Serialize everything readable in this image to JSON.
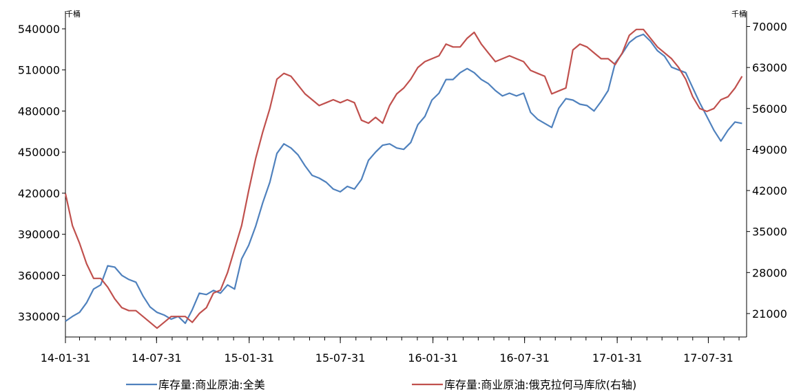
{
  "chart_data": {
    "type": "line",
    "left_unit": "千桶",
    "right_unit": "千桶",
    "x_ticks": [
      "14-01-31",
      "14-07-31",
      "15-01-31",
      "15-07-31",
      "16-01-31",
      "16-07-31",
      "17-01-31",
      "17-07-31"
    ],
    "x_range": [
      "2014-01-31",
      "2017-10-15"
    ],
    "y_left": {
      "ticks": [
        330000,
        360000,
        390000,
        420000,
        450000,
        480000,
        510000,
        540000
      ],
      "labels": [
        "330000",
        "360000",
        "390000",
        "420000",
        "450000",
        "480000",
        "510000",
        "540000"
      ],
      "range": [
        315000,
        546000
      ]
    },
    "y_right": {
      "ticks": [
        21000,
        28000,
        35000,
        42000,
        49000,
        56000,
        63000,
        70000
      ],
      "labels": [
        "21000",
        "28000",
        "35000",
        "42000",
        "49000",
        "56000",
        "63000",
        "70000"
      ],
      "range": [
        17000,
        71000
      ]
    },
    "grid": false,
    "legend_position": "bottom",
    "series": [
      {
        "name": "库存量:商业原油:全美",
        "axis": "left",
        "color": "#4f81bd",
        "points": [
          [
            "2014-01-31",
            326500
          ],
          [
            "2014-02-14",
            330000
          ],
          [
            "2014-02-28",
            333000
          ],
          [
            "2014-03-14",
            340000
          ],
          [
            "2014-03-28",
            350000
          ],
          [
            "2014-04-11",
            353000
          ],
          [
            "2014-04-25",
            367000
          ],
          [
            "2014-05-09",
            366000
          ],
          [
            "2014-05-23",
            360000
          ],
          [
            "2014-06-06",
            357000
          ],
          [
            "2014-06-20",
            355000
          ],
          [
            "2014-07-04",
            345000
          ],
          [
            "2014-07-18",
            337000
          ],
          [
            "2014-08-01",
            333000
          ],
          [
            "2014-08-15",
            331000
          ],
          [
            "2014-08-29",
            328000
          ],
          [
            "2014-09-12",
            330000
          ],
          [
            "2014-09-26",
            325000
          ],
          [
            "2014-10-10",
            335000
          ],
          [
            "2014-10-24",
            347000
          ],
          [
            "2014-11-07",
            346000
          ],
          [
            "2014-11-21",
            349000
          ],
          [
            "2014-12-05",
            347000
          ],
          [
            "2014-12-19",
            353000
          ],
          [
            "2015-01-02",
            350000
          ],
          [
            "2015-01-16",
            372000
          ],
          [
            "2015-01-30",
            382000
          ],
          [
            "2015-02-13",
            396000
          ],
          [
            "2015-02-27",
            413000
          ],
          [
            "2015-03-13",
            428000
          ],
          [
            "2015-03-27",
            449000
          ],
          [
            "2015-04-10",
            456000
          ],
          [
            "2015-04-24",
            453000
          ],
          [
            "2015-05-08",
            448000
          ],
          [
            "2015-05-22",
            440000
          ],
          [
            "2015-06-05",
            433000
          ],
          [
            "2015-06-19",
            431000
          ],
          [
            "2015-07-03",
            428000
          ],
          [
            "2015-07-17",
            423000
          ],
          [
            "2015-07-31",
            421000
          ],
          [
            "2015-08-14",
            425000
          ],
          [
            "2015-08-28",
            423000
          ],
          [
            "2015-09-11",
            430000
          ],
          [
            "2015-09-25",
            444000
          ],
          [
            "2015-10-09",
            450000
          ],
          [
            "2015-10-23",
            455000
          ],
          [
            "2015-11-06",
            456000
          ],
          [
            "2015-11-20",
            453000
          ],
          [
            "2015-12-04",
            452000
          ],
          [
            "2015-12-18",
            457000
          ],
          [
            "2016-01-01",
            470000
          ],
          [
            "2016-01-15",
            476000
          ],
          [
            "2016-01-29",
            488000
          ],
          [
            "2016-02-12",
            493000
          ],
          [
            "2016-02-26",
            503000
          ],
          [
            "2016-03-11",
            503000
          ],
          [
            "2016-03-25",
            508000
          ],
          [
            "2016-04-08",
            511000
          ],
          [
            "2016-04-22",
            508000
          ],
          [
            "2016-05-06",
            503000
          ],
          [
            "2016-05-20",
            500000
          ],
          [
            "2016-06-03",
            495000
          ],
          [
            "2016-06-17",
            491000
          ],
          [
            "2016-07-01",
            493000
          ],
          [
            "2016-07-15",
            491000
          ],
          [
            "2016-07-29",
            493000
          ],
          [
            "2016-08-12",
            479000
          ],
          [
            "2016-08-26",
            474000
          ],
          [
            "2016-09-09",
            471000
          ],
          [
            "2016-09-23",
            468000
          ],
          [
            "2016-10-07",
            482000
          ],
          [
            "2016-10-21",
            489000
          ],
          [
            "2016-11-04",
            488000
          ],
          [
            "2016-11-18",
            485000
          ],
          [
            "2016-12-02",
            484000
          ],
          [
            "2016-12-16",
            480000
          ],
          [
            "2016-12-30",
            487000
          ],
          [
            "2017-01-13",
            495000
          ],
          [
            "2017-01-27",
            515000
          ],
          [
            "2017-02-10",
            522000
          ],
          [
            "2017-02-24",
            530000
          ],
          [
            "2017-03-10",
            534000
          ],
          [
            "2017-03-24",
            536000
          ],
          [
            "2017-04-07",
            531000
          ],
          [
            "2017-04-21",
            524000
          ],
          [
            "2017-05-05",
            520000
          ],
          [
            "2017-05-19",
            512000
          ],
          [
            "2017-06-02",
            510000
          ],
          [
            "2017-06-16",
            508000
          ],
          [
            "2017-06-30",
            497000
          ],
          [
            "2017-07-14",
            486000
          ],
          [
            "2017-07-28",
            476000
          ],
          [
            "2017-08-11",
            466000
          ],
          [
            "2017-08-25",
            458000
          ],
          [
            "2017-09-08",
            466000
          ],
          [
            "2017-09-22",
            472000
          ],
          [
            "2017-10-06",
            471000
          ]
        ]
      },
      {
        "name": "库存量:商业原油:俄克拉何马库欣(右轴)",
        "axis": "right",
        "color": "#c0504d",
        "points": [
          [
            "2014-01-31",
            41500
          ],
          [
            "2014-02-14",
            36000
          ],
          [
            "2014-02-28",
            33000
          ],
          [
            "2014-03-14",
            29500
          ],
          [
            "2014-03-28",
            27000
          ],
          [
            "2014-04-11",
            27000
          ],
          [
            "2014-04-25",
            25500
          ],
          [
            "2014-05-09",
            23500
          ],
          [
            "2014-05-23",
            22000
          ],
          [
            "2014-06-06",
            21500
          ],
          [
            "2014-06-20",
            21500
          ],
          [
            "2014-07-04",
            20500
          ],
          [
            "2014-07-18",
            19500
          ],
          [
            "2014-08-01",
            18500
          ],
          [
            "2014-08-15",
            19500
          ],
          [
            "2014-08-29",
            20500
          ],
          [
            "2014-09-12",
            20500
          ],
          [
            "2014-09-26",
            20500
          ],
          [
            "2014-10-10",
            19500
          ],
          [
            "2014-10-24",
            21000
          ],
          [
            "2014-11-07",
            22000
          ],
          [
            "2014-11-21",
            24500
          ],
          [
            "2014-12-05",
            25000
          ],
          [
            "2014-12-19",
            28000
          ],
          [
            "2015-01-02",
            32000
          ],
          [
            "2015-01-16",
            36000
          ],
          [
            "2015-01-30",
            42000
          ],
          [
            "2015-02-13",
            47500
          ],
          [
            "2015-02-27",
            52000
          ],
          [
            "2015-03-13",
            56000
          ],
          [
            "2015-03-27",
            61000
          ],
          [
            "2015-04-10",
            62000
          ],
          [
            "2015-04-24",
            61500
          ],
          [
            "2015-05-08",
            60000
          ],
          [
            "2015-05-22",
            58500
          ],
          [
            "2015-06-05",
            57500
          ],
          [
            "2015-06-19",
            56500
          ],
          [
            "2015-07-03",
            57000
          ],
          [
            "2015-07-17",
            57500
          ],
          [
            "2015-07-31",
            57000
          ],
          [
            "2015-08-14",
            57500
          ],
          [
            "2015-08-28",
            57000
          ],
          [
            "2015-09-11",
            54000
          ],
          [
            "2015-09-25",
            53500
          ],
          [
            "2015-10-09",
            54500
          ],
          [
            "2015-10-23",
            53500
          ],
          [
            "2015-11-06",
            56500
          ],
          [
            "2015-11-20",
            58500
          ],
          [
            "2015-12-04",
            59500
          ],
          [
            "2015-12-18",
            61000
          ],
          [
            "2016-01-01",
            63000
          ],
          [
            "2016-01-15",
            64000
          ],
          [
            "2016-01-29",
            64500
          ],
          [
            "2016-02-12",
            65000
          ],
          [
            "2016-02-26",
            67000
          ],
          [
            "2016-03-11",
            66500
          ],
          [
            "2016-03-25",
            66500
          ],
          [
            "2016-04-08",
            68000
          ],
          [
            "2016-04-22",
            69000
          ],
          [
            "2016-05-06",
            67000
          ],
          [
            "2016-05-20",
            65500
          ],
          [
            "2016-06-03",
            64000
          ],
          [
            "2016-06-17",
            64500
          ],
          [
            "2016-07-01",
            65000
          ],
          [
            "2016-07-15",
            64500
          ],
          [
            "2016-07-29",
            64000
          ],
          [
            "2016-08-12",
            62500
          ],
          [
            "2016-08-26",
            62000
          ],
          [
            "2016-09-09",
            61500
          ],
          [
            "2016-09-23",
            58500
          ],
          [
            "2016-10-07",
            59000
          ],
          [
            "2016-10-21",
            59500
          ],
          [
            "2016-11-04",
            66000
          ],
          [
            "2016-11-18",
            67000
          ],
          [
            "2016-12-02",
            66500
          ],
          [
            "2016-12-16",
            65500
          ],
          [
            "2016-12-30",
            64500
          ],
          [
            "2017-01-13",
            64500
          ],
          [
            "2017-01-27",
            63500
          ],
          [
            "2017-02-10",
            65500
          ],
          [
            "2017-02-24",
            68500
          ],
          [
            "2017-03-10",
            69500
          ],
          [
            "2017-03-24",
            69500
          ],
          [
            "2017-04-07",
            68000
          ],
          [
            "2017-04-21",
            66500
          ],
          [
            "2017-05-05",
            65500
          ],
          [
            "2017-05-19",
            64500
          ],
          [
            "2017-06-02",
            63000
          ],
          [
            "2017-06-16",
            61000
          ],
          [
            "2017-06-30",
            58000
          ],
          [
            "2017-07-14",
            56000
          ],
          [
            "2017-07-28",
            55500
          ],
          [
            "2017-08-11",
            56000
          ],
          [
            "2017-08-25",
            57500
          ],
          [
            "2017-09-08",
            58000
          ],
          [
            "2017-09-22",
            59500
          ],
          [
            "2017-10-06",
            61500
          ]
        ]
      }
    ]
  }
}
